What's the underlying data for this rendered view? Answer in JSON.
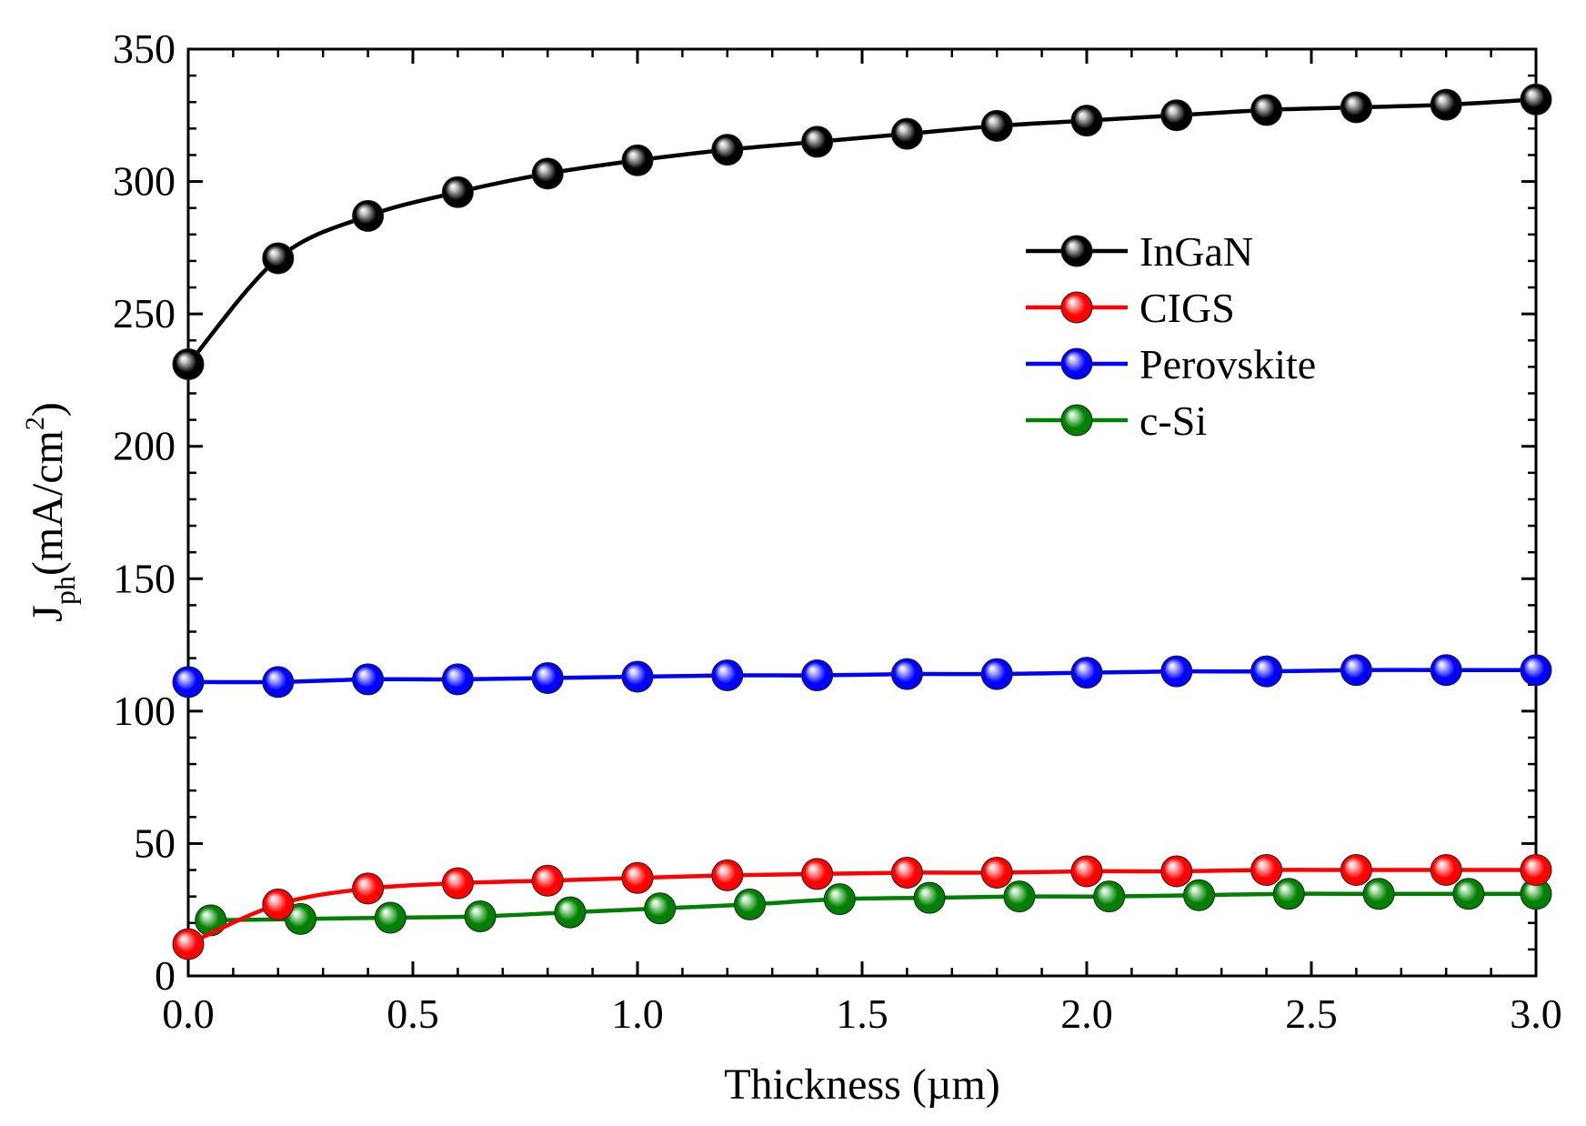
{
  "chart_data": {
    "type": "line",
    "title": "",
    "xlabel": "Thickness (µm)",
    "ylabel": {
      "main": "J",
      "sub": "ph",
      "units": "(mA/cm",
      "sup": "2",
      "close": ")"
    },
    "xlim": [
      0,
      3.0
    ],
    "ylim": [
      0,
      350
    ],
    "x_ticks": [
      "0.0",
      "0.5",
      "1.0",
      "1.5",
      "2.0",
      "2.5",
      "3.0"
    ],
    "y_ticks": [
      "0",
      "50",
      "100",
      "150",
      "200",
      "250",
      "300",
      "350"
    ],
    "legend_position": "upper-right",
    "series": [
      {
        "name": "InGaN",
        "color": "#000000",
        "highlight": "#cfcfcf",
        "x": [
          0.0,
          0.2,
          0.4,
          0.6,
          0.8,
          1.0,
          1.2,
          1.4,
          1.6,
          1.8,
          2.0,
          2.2,
          2.4,
          2.6,
          2.8,
          3.0
        ],
        "y": [
          231,
          271,
          287,
          296,
          303,
          308,
          312,
          315,
          318,
          321,
          323,
          325,
          327,
          328,
          329,
          331
        ]
      },
      {
        "name": "CIGS",
        "color": "#ff0000",
        "highlight": "#ffc8c8",
        "x": [
          0.0,
          0.2,
          0.4,
          0.6,
          0.8,
          1.0,
          1.2,
          1.4,
          1.6,
          1.8,
          2.0,
          2.2,
          2.4,
          2.6,
          2.8,
          3.0
        ],
        "y": [
          12,
          27,
          33,
          35,
          36,
          37,
          38,
          38.5,
          39,
          39,
          39.5,
          39.5,
          40,
          40,
          40,
          40
        ]
      },
      {
        "name": "Perovskite",
        "color": "#0000ff",
        "highlight": "#c8c8ff",
        "x": [
          0.0,
          0.2,
          0.4,
          0.6,
          0.8,
          1.0,
          1.2,
          1.4,
          1.6,
          1.8,
          2.0,
          2.2,
          2.4,
          2.6,
          2.8,
          3.0
        ],
        "y": [
          111,
          111,
          112,
          112,
          112.5,
          113,
          113.5,
          113.5,
          114,
          114,
          114.5,
          115,
          115,
          115.5,
          115.5,
          115.5
        ]
      },
      {
        "name": "c-Si",
        "color": "#008000",
        "highlight": "#bfe8bf",
        "x": [
          0.05,
          0.25,
          0.45,
          0.65,
          0.85,
          1.05,
          1.25,
          1.45,
          1.65,
          1.85,
          2.05,
          2.25,
          2.45,
          2.65,
          2.85,
          3.0
        ],
        "y": [
          21,
          21.5,
          22,
          22.5,
          24,
          25.5,
          27,
          29,
          29.5,
          30,
          30,
          30.5,
          31,
          31,
          31,
          31
        ]
      }
    ]
  }
}
